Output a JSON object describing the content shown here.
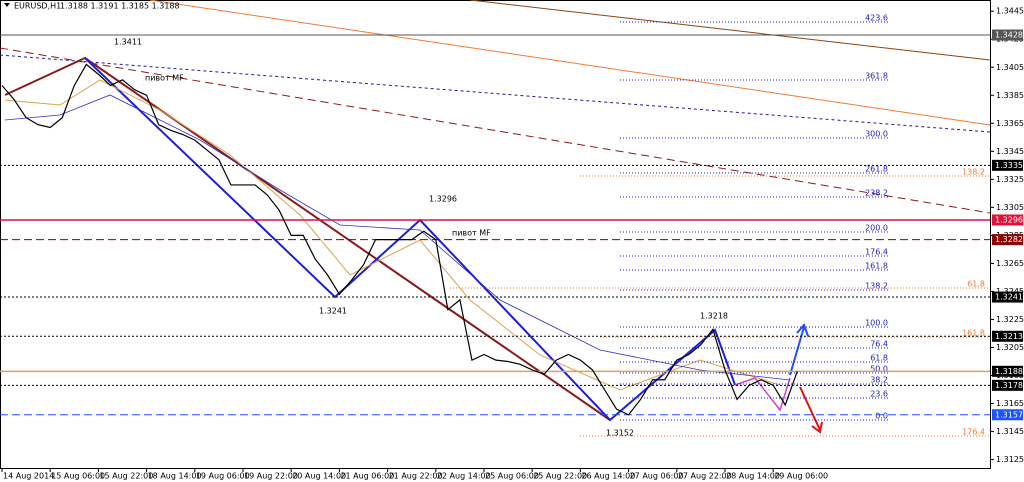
{
  "header": {
    "title": "EURUSD,H1",
    "quote": "1.3188 1.3191 1.3185 1.3188"
  },
  "chart_data": {
    "type": "line",
    "color": "#000000",
    "categories": [
      "14 Aug 2014",
      null,
      null,
      null,
      "15 Aug 06:00",
      null,
      null,
      null,
      "15 Aug 22:00",
      null,
      null,
      null,
      "18 Aug 14:00",
      null,
      null,
      null,
      "19 Aug 06:00",
      null,
      null,
      null,
      "19 Aug 22:00",
      null,
      null,
      null,
      "20 Aug 14:00",
      null,
      null,
      null,
      "21 Aug 06:00",
      null,
      null,
      null,
      "21 Aug 22:00",
      null,
      null,
      null,
      "22 Aug 14:00",
      null,
      null,
      null,
      "25 Aug 06:00",
      null,
      null,
      null,
      "25 Aug 22:00",
      null,
      null,
      null,
      "26 Aug 14:00",
      null,
      null,
      null,
      "27 Aug 06:00",
      null,
      null,
      null,
      "27 Aug 22:00",
      null,
      null,
      null,
      "28 Aug 14:00",
      null,
      null,
      null,
      "29 Aug 06:00",
      null,
      null
    ],
    "values": [
      1.3392,
      1.3382,
      1.3369,
      1.3364,
      1.3362,
      1.3369,
      1.3392,
      1.3407,
      1.34,
      1.3392,
      1.3396,
      1.3389,
      1.3385,
      1.3364,
      1.336,
      1.3357,
      1.3353,
      1.3346,
      1.3339,
      1.3321,
      1.3321,
      1.3321,
      1.3314,
      1.3303,
      1.3285,
      1.3285,
      1.3268,
      1.3257,
      1.3243,
      1.3253,
      1.3264,
      1.3282,
      1.3282,
      1.3282,
      1.3282,
      1.3288,
      1.3282,
      1.3232,
      1.3239,
      1.3196,
      1.32,
      1.3196,
      1.3195,
      1.3193,
      1.3189,
      1.3186,
      1.3196,
      1.32,
      1.3196,
      1.3189,
      1.3175,
      1.3161,
      1.3157,
      1.3168,
      1.3182,
      1.3182,
      1.3196,
      1.32,
      1.3207,
      1.3218,
      1.3189,
      1.3168,
      1.3178,
      1.3182,
      1.3178,
      1.3164,
      1.3188
    ],
    "ylim": [
      1.3119,
      1.3453
    ],
    "yticks": [
      1.3125,
      1.3145,
      1.3165,
      1.3185,
      1.3205,
      1.3225,
      1.3245,
      1.3265,
      1.3285,
      1.3305,
      1.3325,
      1.3345,
      1.3365,
      1.3385,
      1.3405,
      1.3425,
      1.3445
    ],
    "levels": [
      {
        "value": 1.3428,
        "color": "#555555"
      },
      {
        "value": 1.3335,
        "color": "#000000"
      },
      {
        "value": 1.3296,
        "color": "#dc143c"
      },
      {
        "value": 1.3282,
        "color": "#8b0000"
      },
      {
        "value": 1.3241,
        "color": "#000000"
      },
      {
        "value": 1.3213,
        "color": "#000000"
      },
      {
        "value": 1.3188,
        "color": "#000000"
      },
      {
        "value": 1.3178,
        "color": "#000000"
      },
      {
        "value": 1.3157,
        "color": "#1e50ff"
      }
    ],
    "annotations": [
      "1.3411",
      "пивот MF",
      "1.3296",
      "пивот MF",
      "1.3241",
      "1.3218",
      "1.3152"
    ],
    "fib_labels": [
      "423.6",
      "361.8",
      "300.0",
      "261.8",
      "238.2",
      "200.0",
      "176.4",
      "161.8",
      "138.2",
      "100.0",
      "76.4",
      "61.8",
      "50.0",
      "38.2",
      "23.6",
      "0.0"
    ],
    "fib_labels_orange": [
      "138.2",
      "61.8",
      "161.8",
      "176.4"
    ]
  }
}
